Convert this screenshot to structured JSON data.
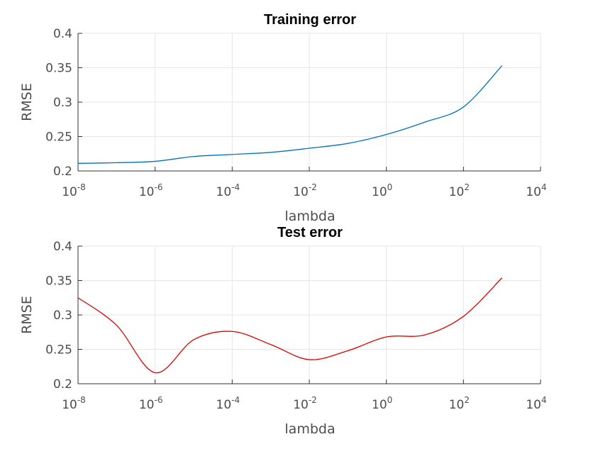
{
  "chart_data": [
    {
      "type": "line",
      "title": "Training error",
      "xlabel": "lambda",
      "ylabel": "RMSE",
      "xscale": "log",
      "xlim": [
        1e-08,
        10000
      ],
      "ylim": [
        0.2,
        0.4
      ],
      "grid": true,
      "xtick_exponents": [
        "-8",
        "-6",
        "-4",
        "-2",
        "0",
        "2",
        "4"
      ],
      "yticks": [
        "0.2",
        "0.25",
        "0.3",
        "0.35",
        "0.4"
      ],
      "series": [
        {
          "color": "#0072bd",
          "x": [
            1e-08,
            1e-07,
            1e-06,
            1e-05,
            0.0001,
            0.001,
            0.01,
            0.1,
            1,
            10,
            100,
            1000
          ],
          "y": [
            0.211,
            0.212,
            0.214,
            0.221,
            0.224,
            0.227,
            0.233,
            0.24,
            0.253,
            0.271,
            0.293,
            0.353
          ]
        }
      ]
    },
    {
      "type": "line",
      "title": "Test error",
      "xlabel": "lambda",
      "ylabel": "RMSE",
      "xscale": "log",
      "xlim": [
        1e-08,
        10000
      ],
      "ylim": [
        0.2,
        0.4
      ],
      "grid": true,
      "xtick_exponents": [
        "-8",
        "-6",
        "-4",
        "-2",
        "0",
        "2",
        "4"
      ],
      "yticks": [
        "0.2",
        "0.25",
        "0.3",
        "0.35",
        "0.4"
      ],
      "series": [
        {
          "color": "#e00000",
          "x": [
            1e-08,
            1e-07,
            1e-06,
            1e-05,
            0.0001,
            0.001,
            0.01,
            0.1,
            1,
            10,
            100,
            1000
          ],
          "y": [
            0.325,
            0.285,
            0.216,
            0.264,
            0.276,
            0.257,
            0.235,
            0.248,
            0.268,
            0.271,
            0.298,
            0.354
          ]
        }
      ]
    }
  ]
}
